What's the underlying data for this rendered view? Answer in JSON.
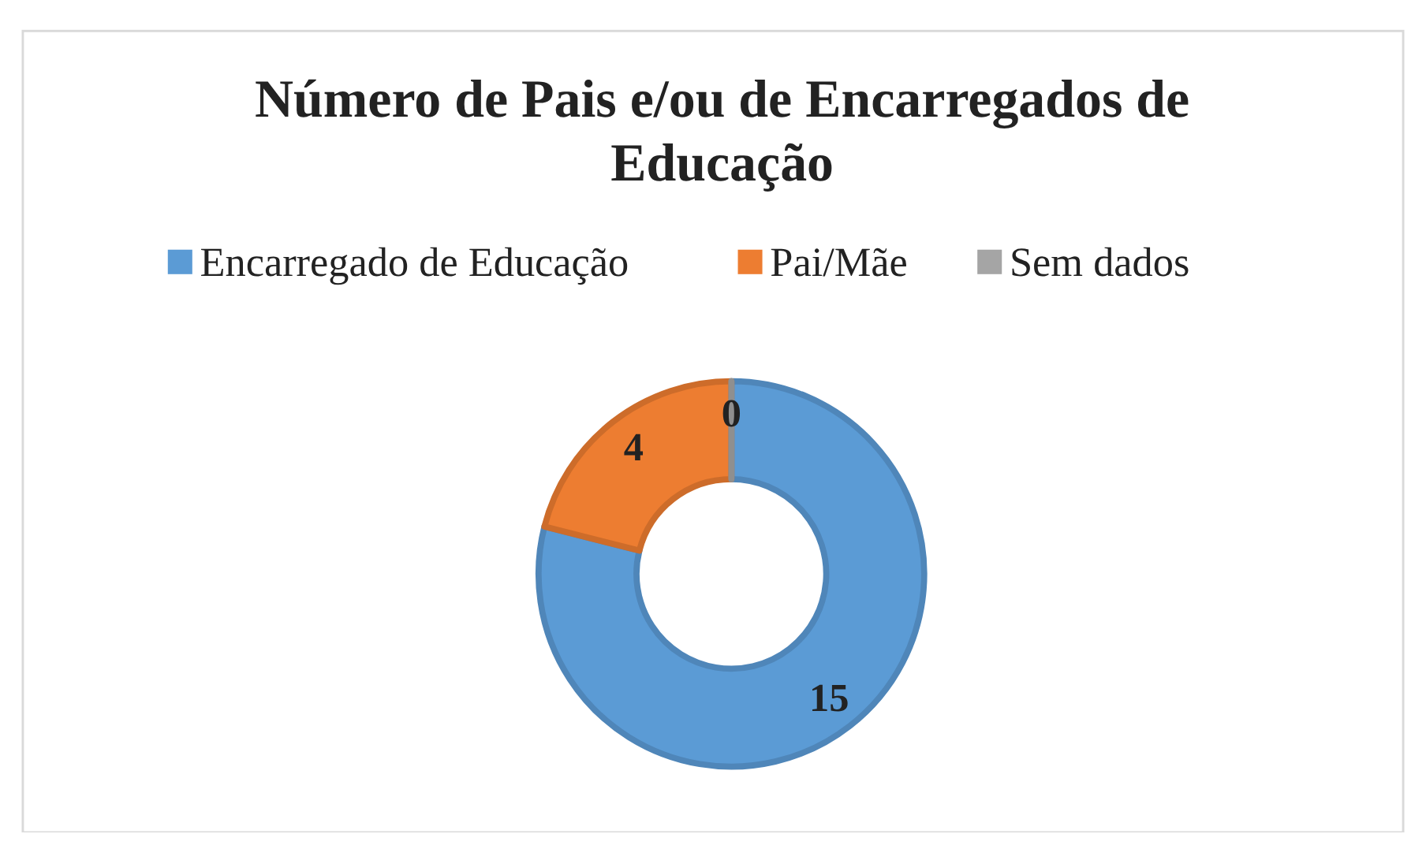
{
  "chart_data": {
    "type": "donut",
    "title": "Número de Pais e/ou de Encarregados de Educação",
    "categories": [
      "Encarregado de Educação",
      "Pai/Mãe",
      "Sem dados"
    ],
    "values": [
      15,
      4,
      0
    ],
    "colors": [
      "#5b9bd5",
      "#ed7d31",
      "#a5a5a5"
    ],
    "value_labels": [
      "15",
      "4",
      "0"
    ],
    "legend": "top"
  }
}
